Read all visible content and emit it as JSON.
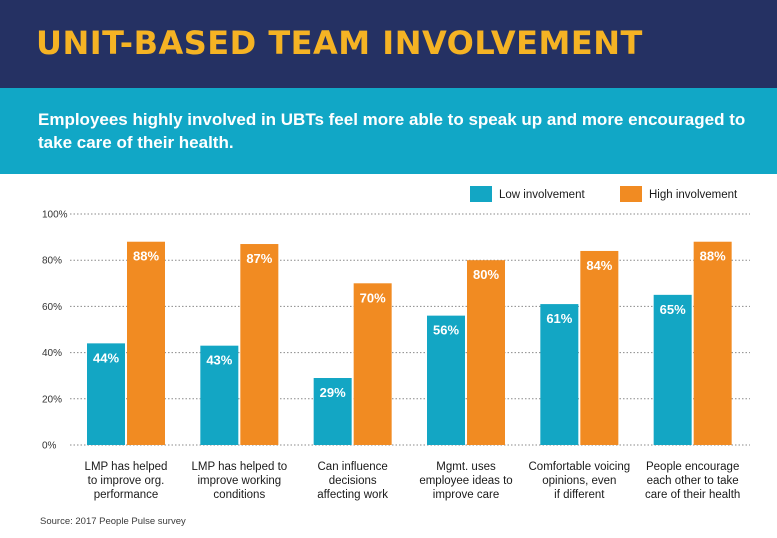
{
  "header": {
    "title": "UNIT-BASED TEAM INVOLVEMENT"
  },
  "subtitle": "Employees highly involved in UBTs feel more able to speak up and more encouraged to take care of their health.",
  "source": "Source: 2017 People Pulse survey",
  "colors": {
    "low": "#13a6c4",
    "high": "#f18b22",
    "header_bg": "#253163",
    "title": "#f5b324",
    "subbar": "#11a7c6"
  },
  "chart_data": {
    "type": "bar",
    "title": "UNIT-BASED TEAM INVOLVEMENT",
    "categories": [
      [
        "LMP has helped",
        "to improve org.",
        "performance"
      ],
      [
        "LMP has helped to",
        "improve working",
        "conditions"
      ],
      [
        "Can influence",
        "decisions",
        "affecting work"
      ],
      [
        "Mgmt. uses",
        "employee ideas to",
        "improve care"
      ],
      [
        "Comfortable voicing",
        "opinions, even",
        "if different"
      ],
      [
        "People encourage",
        "each other to take",
        "care of their health"
      ]
    ],
    "series": [
      {
        "name": "Low involvement",
        "values": [
          44,
          43,
          29,
          56,
          61,
          65
        ],
        "labels": [
          "44%",
          "43%",
          "29%",
          "56%",
          "61%",
          "65%"
        ]
      },
      {
        "name": "High involvement",
        "values": [
          88,
          87,
          70,
          80,
          84,
          88
        ],
        "labels": [
          "88%",
          "87%",
          "70%",
          "80%",
          "84%",
          "88%"
        ]
      }
    ],
    "y_ticks": [
      "0%",
      "20%",
      "40%",
      "60%",
      "80%",
      "100%"
    ],
    "ylim": [
      0,
      100
    ],
    "xlabel": "",
    "ylabel": "",
    "grid": true,
    "legend_position": "top-right"
  }
}
